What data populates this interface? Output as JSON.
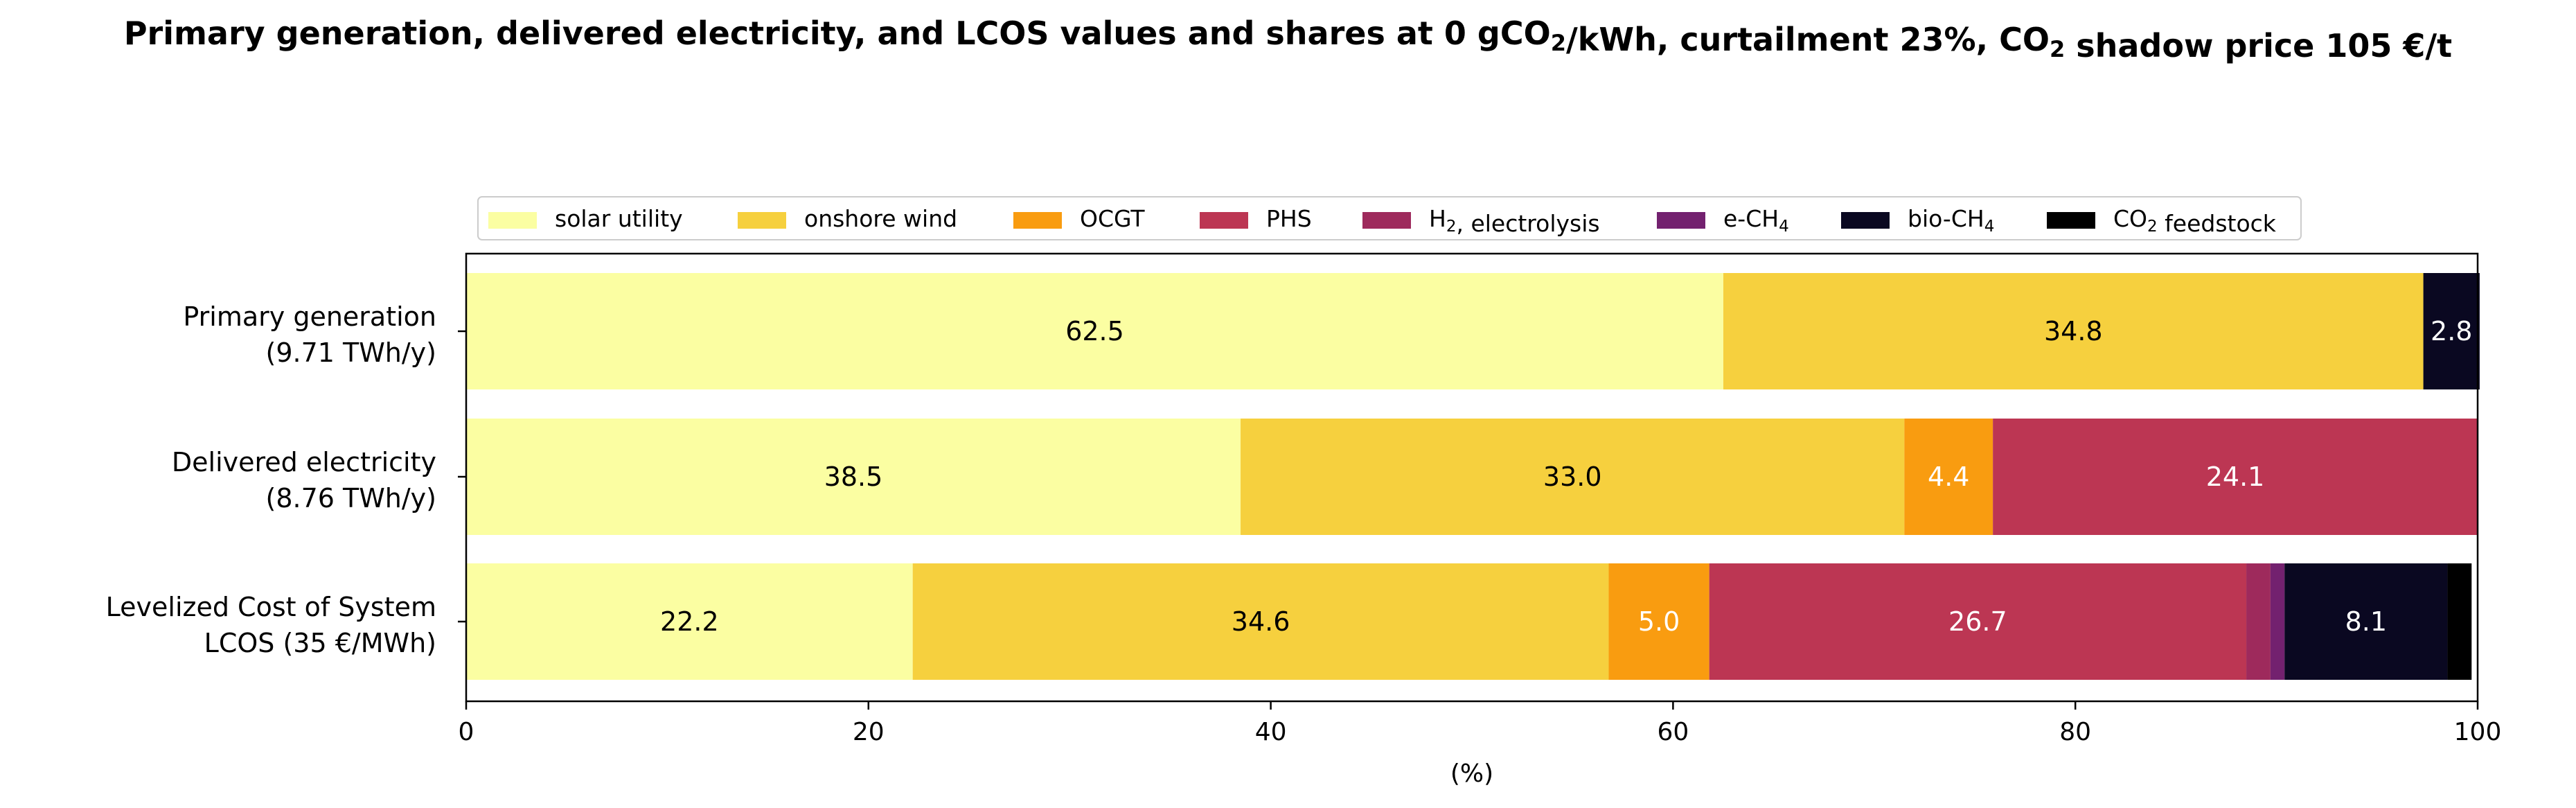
{
  "chart_data": {
    "type": "bar",
    "orientation": "horizontal",
    "stacked": true,
    "title": {
      "parts": [
        {
          "text": "Primary generation, delivered electricity, and LCOS values and shares at 0 gCO",
          "sub": false
        },
        {
          "text": "2",
          "sub": true
        },
        {
          "text": "/kWh, curtailment 23%, CO",
          "sub": false
        },
        {
          "text": "2",
          "sub": true
        },
        {
          "text": " shadow price 105 €/t",
          "sub": false
        }
      ]
    },
    "xlabel": "(%)",
    "ylabel": "",
    "xlim": [
      0,
      100
    ],
    "xticks": [
      0,
      20,
      40,
      60,
      80,
      100
    ],
    "grid": false,
    "legend_position": "top-center",
    "categories": [
      {
        "line1": "Primary generation",
        "line2": "(9.71 TWh/y)"
      },
      {
        "line1": "Delivered electricity",
        "line2": "(8.76 TWh/y)"
      },
      {
        "line1": "Levelized Cost of System",
        "line2": "LCOS  (35 €/MWh)"
      }
    ],
    "series": [
      {
        "name": "solar utility",
        "legend_parts": [
          {
            "text": "solar utility",
            "sub": false
          }
        ],
        "color": "#fbfea2",
        "label_color": "#000000",
        "values": [
          62.5,
          38.5,
          22.2
        ],
        "labels": [
          "62.5",
          "38.5",
          "22.2"
        ]
      },
      {
        "name": "onshore wind",
        "legend_parts": [
          {
            "text": "onshore wind",
            "sub": false
          }
        ],
        "color": "#f6d03e",
        "label_color": "#000000",
        "values": [
          34.8,
          33.0,
          34.6
        ],
        "labels": [
          "34.8",
          "33.0",
          "34.6"
        ]
      },
      {
        "name": "OCGT",
        "legend_parts": [
          {
            "text": "OCGT",
            "sub": false
          }
        ],
        "color": "#f99c10",
        "label_color": "#ffffff",
        "values": [
          0,
          4.4,
          5.0
        ],
        "labels": [
          "",
          "4.4",
          "5.0"
        ]
      },
      {
        "name": "PHS",
        "legend_parts": [
          {
            "text": "PHS",
            "sub": false
          }
        ],
        "color": "#bc3653",
        "label_color": "#ffffff",
        "values": [
          0,
          24.1,
          26.7
        ],
        "labels": [
          "",
          "24.1",
          "26.7"
        ]
      },
      {
        "name": "H2, electrolysis",
        "legend_parts": [
          {
            "text": "H",
            "sub": false
          },
          {
            "text": "2",
            "sub": true
          },
          {
            "text": ", electrolysis",
            "sub": false
          }
        ],
        "color": "#9e2a5c",
        "label_color": "#ffffff",
        "values": [
          0,
          0,
          1.2
        ],
        "labels": [
          "",
          "",
          ""
        ]
      },
      {
        "name": "e-CH4",
        "legend_parts": [
          {
            "text": "e-CH",
            "sub": false
          },
          {
            "text": "4",
            "sub": true
          }
        ],
        "color": "#73216f",
        "label_color": "#ffffff",
        "values": [
          0,
          0,
          0.7
        ],
        "labels": [
          "",
          "",
          ""
        ]
      },
      {
        "name": "bio-CH4",
        "legend_parts": [
          {
            "text": "bio-CH",
            "sub": false
          },
          {
            "text": "4",
            "sub": true
          }
        ],
        "color": "#0a0821",
        "label_color": "#ffffff",
        "values": [
          2.8,
          0,
          8.1
        ],
        "labels": [
          "2.8",
          "",
          "8.1"
        ]
      },
      {
        "name": "CO2 feedstock",
        "legend_parts": [
          {
            "text": "CO",
            "sub": false
          },
          {
            "text": "2",
            "sub": true
          },
          {
            "text": " feedstock",
            "sub": false
          }
        ],
        "color": "#000000",
        "label_color": "#ffffff",
        "values": [
          0,
          0,
          1.2
        ],
        "labels": [
          "",
          "",
          ""
        ]
      }
    ]
  }
}
